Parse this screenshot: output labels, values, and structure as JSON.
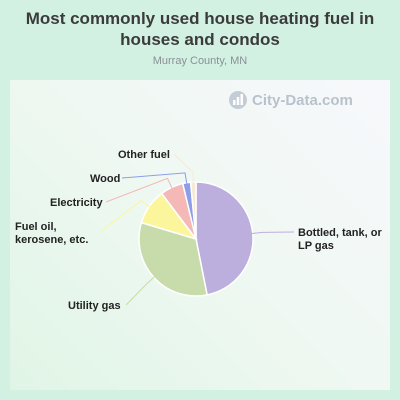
{
  "title": "Most commonly used house heating fuel in houses and condos",
  "subtitle": "Murray County, MN",
  "watermark": "City-Data.com",
  "chart_data": {
    "type": "pie",
    "title": "Most commonly used house heating fuel in houses and condos",
    "subtitle": "Murray County, MN",
    "slices": [
      {
        "label": "Bottled, tank, or LP gas",
        "value": 46.5,
        "color": "#bcaedd"
      },
      {
        "label": "Utility gas",
        "value": 32.5,
        "color": "#c7dcaa"
      },
      {
        "label": "Fuel oil, kerosene, etc.",
        "value": 10.0,
        "color": "#fbf69c"
      },
      {
        "label": "Electricity",
        "value": 6.5,
        "color": "#f4b8b7"
      },
      {
        "label": "Wood",
        "value": 2.2,
        "color": "#8c9ee9"
      },
      {
        "label": "Other fuel",
        "value": 1.5,
        "color": "#f7e9d4"
      }
    ]
  }
}
